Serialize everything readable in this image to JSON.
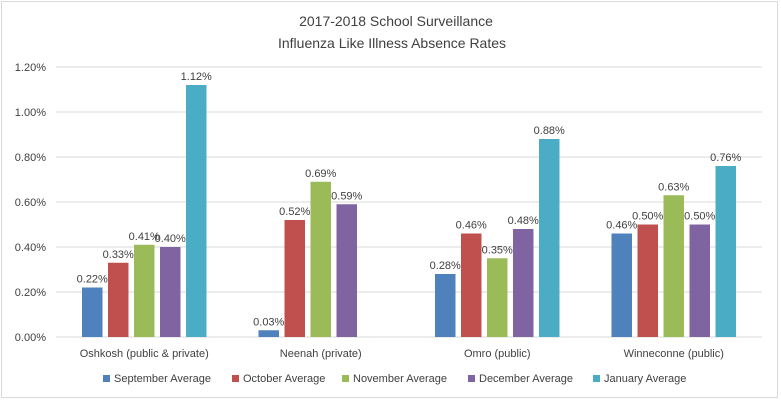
{
  "chart_data": {
    "type": "bar",
    "title": "2017-2018 School Surveillance",
    "subtitle": "Influenza Like Illness Absence Rates",
    "xlabel": "",
    "ylabel": "",
    "ylim": [
      0,
      1.2
    ],
    "yticks": [
      "0.00%",
      "0.20%",
      "0.40%",
      "0.60%",
      "0.80%",
      "1.00%",
      "1.20%"
    ],
    "grid": true,
    "legend_position": "bottom",
    "categories": [
      "Oshkosh (public & private)",
      "Neenah (private)",
      "Omro (public)",
      "Winneconne (public)"
    ],
    "series": [
      {
        "name": "September Average",
        "color": "#4f81bd",
        "values": [
          0.22,
          0.03,
          0.28,
          0.46
        ],
        "labels": [
          "0.22%",
          "0.03%",
          "0.28%",
          "0.46%"
        ]
      },
      {
        "name": "October Average",
        "color": "#c0504d",
        "values": [
          0.33,
          0.52,
          0.46,
          0.5
        ],
        "labels": [
          "0.33%",
          "0.52%",
          "0.46%",
          "0.50%"
        ]
      },
      {
        "name": "November Average",
        "color": "#9bbb59",
        "values": [
          0.41,
          0.69,
          0.35,
          0.63
        ],
        "labels": [
          "0.41%",
          "0.69%",
          "0.35%",
          "0.63%"
        ]
      },
      {
        "name": "December Average",
        "color": "#8064a2",
        "values": [
          0.4,
          0.59,
          0.48,
          0.5
        ],
        "labels": [
          "0.40%",
          "0.59%",
          "0.48%",
          "0.50%"
        ]
      },
      {
        "name": "January Average",
        "color": "#4bacc6",
        "values": [
          1.12,
          null,
          0.88,
          0.76
        ],
        "labels": [
          "1.12%",
          "",
          "0.88%",
          "0.76%"
        ]
      }
    ]
  }
}
